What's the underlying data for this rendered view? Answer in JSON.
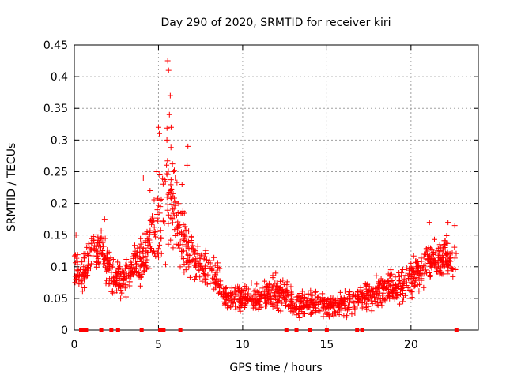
{
  "chart_data": {
    "type": "scatter",
    "title": "Day 290 of 2020, SRMTID for receiver kiri",
    "xlabel": "GPS time / hours",
    "ylabel": "SRMTID / TECUs",
    "xlim": [
      0,
      24
    ],
    "ylim": [
      0,
      0.45
    ],
    "xticks": [
      0,
      5,
      10,
      15,
      20
    ],
    "yticks": [
      0,
      0.05,
      0.1,
      0.15,
      0.2,
      0.25,
      0.3,
      0.35,
      0.4,
      0.45
    ],
    "ytick_labels": [
      "0",
      "0.05",
      "0.1",
      "0.15",
      "0.2",
      "0.25",
      "0.3",
      "0.35",
      "0.4",
      "0.45"
    ],
    "xtick_labels": [
      "0",
      "5",
      "10",
      "15",
      "20"
    ],
    "grid": true,
    "marker": "plus",
    "color": "#ff0000",
    "series": [
      {
        "name": "SRMTID",
        "envelope_x": [
          0,
          0.5,
          1,
          1.5,
          2,
          2.5,
          3,
          3.5,
          4,
          4.5,
          5,
          5.5,
          6,
          6.5,
          7,
          7.5,
          8,
          8.5,
          9,
          10,
          11,
          12,
          12.5,
          13,
          14,
          15,
          16,
          17,
          18,
          19,
          20,
          21,
          22,
          22.7
        ],
        "envelope_mid": [
          0.1,
          0.09,
          0.12,
          0.13,
          0.1,
          0.08,
          0.08,
          0.1,
          0.11,
          0.14,
          0.16,
          0.22,
          0.17,
          0.14,
          0.12,
          0.1,
          0.09,
          0.08,
          0.05,
          0.05,
          0.05,
          0.06,
          0.06,
          0.04,
          0.04,
          0.04,
          0.04,
          0.05,
          0.06,
          0.07,
          0.08,
          0.11,
          0.11,
          0.11
        ],
        "envelope_spread": [
          0.03,
          0.03,
          0.04,
          0.04,
          0.03,
          0.03,
          0.03,
          0.03,
          0.04,
          0.05,
          0.07,
          0.1,
          0.07,
          0.05,
          0.04,
          0.03,
          0.03,
          0.03,
          0.02,
          0.02,
          0.02,
          0.025,
          0.025,
          0.02,
          0.02,
          0.02,
          0.02,
          0.02,
          0.025,
          0.025,
          0.03,
          0.035,
          0.035,
          0.03
        ],
        "peak_points": [
          {
            "x": 5.55,
            "y": 0.425
          },
          {
            "x": 5.6,
            "y": 0.41
          },
          {
            "x": 5.7,
            "y": 0.37
          },
          {
            "x": 5.65,
            "y": 0.34
          },
          {
            "x": 5.75,
            "y": 0.32
          },
          {
            "x": 5.5,
            "y": 0.3
          },
          {
            "x": 5.05,
            "y": 0.31
          },
          {
            "x": 5.0,
            "y": 0.32
          },
          {
            "x": 6.75,
            "y": 0.29
          },
          {
            "x": 6.7,
            "y": 0.26
          },
          {
            "x": 4.9,
            "y": 0.25
          },
          {
            "x": 5.9,
            "y": 0.25
          },
          {
            "x": 6.0,
            "y": 0.24
          },
          {
            "x": 4.1,
            "y": 0.24
          },
          {
            "x": 4.5,
            "y": 0.22
          },
          {
            "x": 6.4,
            "y": 0.23
          },
          {
            "x": 0.1,
            "y": 0.15
          },
          {
            "x": 1.8,
            "y": 0.175
          },
          {
            "x": 21.1,
            "y": 0.17
          },
          {
            "x": 22.2,
            "y": 0.17
          },
          {
            "x": 22.6,
            "y": 0.165
          }
        ]
      },
      {
        "name": "zero-level markers",
        "x": [
          0.4,
          0.5,
          0.6,
          0.7,
          1.6,
          2.2,
          2.6,
          4.0,
          5.1,
          5.2,
          5.3,
          6.3,
          12.6,
          13.2,
          14.0,
          15.0,
          16.8,
          17.1,
          22.7
        ],
        "y": [
          0,
          0,
          0,
          0,
          0,
          0,
          0,
          0,
          0,
          0,
          0,
          0,
          0,
          0,
          0,
          0,
          0,
          0,
          0
        ]
      }
    ]
  }
}
